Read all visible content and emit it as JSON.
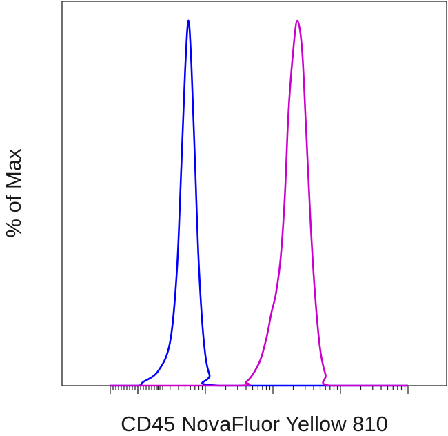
{
  "chart_data": {
    "type": "line",
    "title": "",
    "xlabel": "CD45 NovaFluor Yellow 810",
    "ylabel": "% of Max",
    "x_scale": "log",
    "xlim": [
      -1000,
      1000000
    ],
    "ylim": [
      0,
      100
    ],
    "grid": false,
    "series": [
      {
        "color": "#0000ff",
        "x": [
          -1000,
          50,
          120,
          200,
          300,
          380,
          440,
          500,
          560,
          620,
          700,
          800,
          950,
          1150,
          1600,
          1000000
        ],
        "y": [
          0,
          0,
          1,
          4,
          12,
          32,
          60,
          86,
          100,
          88,
          62,
          33,
          12,
          3,
          0,
          0
        ]
      },
      {
        "color": "#cc00cc",
        "x": [
          -1000,
          3000,
          4000,
          5000,
          6500,
          8000,
          9500,
          11000,
          13000,
          15000,
          17000,
          20000,
          23000,
          27000,
          31000,
          36000,
          42000,
          50000,
          60000,
          70000,
          1000000
        ],
        "y": [
          0,
          0,
          1,
          3,
          7,
          13,
          20,
          25,
          35,
          52,
          75,
          92,
          100,
          92,
          70,
          45,
          25,
          10,
          3,
          0,
          0
        ]
      }
    ]
  }
}
